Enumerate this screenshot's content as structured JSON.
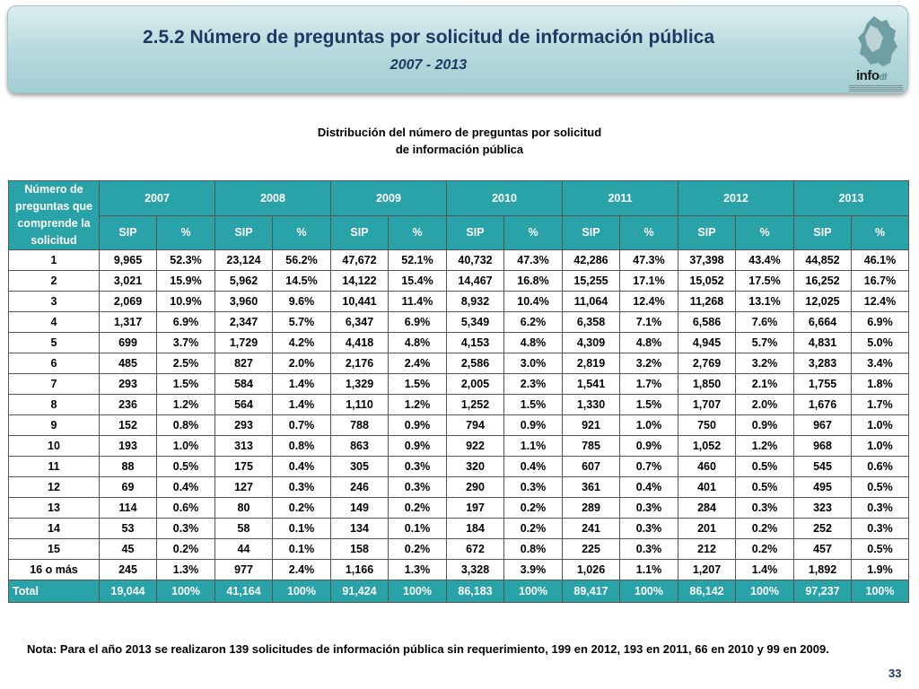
{
  "header": {
    "title": "2.5.2 Número de preguntas por solicitud de información pública",
    "subtitle": "2007 - 2013",
    "logo_text_main": "info",
    "logo_text_small": "df"
  },
  "distribution_title": {
    "line1": "Distribución del número de preguntas por solicitud",
    "line2": "de información pública"
  },
  "table": {
    "row_header": "Número de preguntas que comprende la solicitud",
    "years": [
      "2007",
      "2008",
      "2009",
      "2010",
      "2011",
      "2012",
      "2013"
    ],
    "sub_headers": [
      "SIP",
      "%"
    ],
    "rows": [
      {
        "label": "1",
        "cells": [
          "9,965",
          "52.3%",
          "23,124",
          "56.2%",
          "47,672",
          "52.1%",
          "40,732",
          "47.3%",
          "42,286",
          "47.3%",
          "37,398",
          "43.4%",
          "44,852",
          "46.1%"
        ]
      },
      {
        "label": "2",
        "cells": [
          "3,021",
          "15.9%",
          "5,962",
          "14.5%",
          "14,122",
          "15.4%",
          "14,467",
          "16.8%",
          "15,255",
          "17.1%",
          "15,052",
          "17.5%",
          "16,252",
          "16.7%"
        ]
      },
      {
        "label": "3",
        "cells": [
          "2,069",
          "10.9%",
          "3,960",
          "9.6%",
          "10,441",
          "11.4%",
          "8,932",
          "10.4%",
          "11,064",
          "12.4%",
          "11,268",
          "13.1%",
          "12,025",
          "12.4%"
        ]
      },
      {
        "label": "4",
        "cells": [
          "1,317",
          "6.9%",
          "2,347",
          "5.7%",
          "6,347",
          "6.9%",
          "5,349",
          "6.2%",
          "6,358",
          "7.1%",
          "6,586",
          "7.6%",
          "6,664",
          "6.9%"
        ]
      },
      {
        "label": "5",
        "cells": [
          "699",
          "3.7%",
          "1,729",
          "4.2%",
          "4,418",
          "4.8%",
          "4,153",
          "4.8%",
          "4,309",
          "4.8%",
          "4,945",
          "5.7%",
          "4,831",
          "5.0%"
        ]
      },
      {
        "label": "6",
        "cells": [
          "485",
          "2.5%",
          "827",
          "2.0%",
          "2,176",
          "2.4%",
          "2,586",
          "3.0%",
          "2,819",
          "3.2%",
          "2,769",
          "3.2%",
          "3,283",
          "3.4%"
        ]
      },
      {
        "label": "7",
        "cells": [
          "293",
          "1.5%",
          "584",
          "1.4%",
          "1,329",
          "1.5%",
          "2,005",
          "2.3%",
          "1,541",
          "1.7%",
          "1,850",
          "2.1%",
          "1,755",
          "1.8%"
        ]
      },
      {
        "label": "8",
        "cells": [
          "236",
          "1.2%",
          "564",
          "1.4%",
          "1,110",
          "1.2%",
          "1,252",
          "1.5%",
          "1,330",
          "1.5%",
          "1,707",
          "2.0%",
          "1,676",
          "1.7%"
        ]
      },
      {
        "label": "9",
        "cells": [
          "152",
          "0.8%",
          "293",
          "0.7%",
          "788",
          "0.9%",
          "794",
          "0.9%",
          "921",
          "1.0%",
          "750",
          "0.9%",
          "967",
          "1.0%"
        ]
      },
      {
        "label": "10",
        "cells": [
          "193",
          "1.0%",
          "313",
          "0.8%",
          "863",
          "0.9%",
          "922",
          "1.1%",
          "785",
          "0.9%",
          "1,052",
          "1.2%",
          "968",
          "1.0%"
        ]
      },
      {
        "label": "11",
        "cells": [
          "88",
          "0.5%",
          "175",
          "0.4%",
          "305",
          "0.3%",
          "320",
          "0.4%",
          "607",
          "0.7%",
          "460",
          "0.5%",
          "545",
          "0.6%"
        ]
      },
      {
        "label": "12",
        "cells": [
          "69",
          "0.4%",
          "127",
          "0.3%",
          "246",
          "0.3%",
          "290",
          "0.3%",
          "361",
          "0.4%",
          "401",
          "0.5%",
          "495",
          "0.5%"
        ]
      },
      {
        "label": "13",
        "cells": [
          "114",
          "0.6%",
          "80",
          "0.2%",
          "149",
          "0.2%",
          "197",
          "0.2%",
          "289",
          "0.3%",
          "284",
          "0.3%",
          "323",
          "0.3%"
        ]
      },
      {
        "label": "14",
        "cells": [
          "53",
          "0.3%",
          "58",
          "0.1%",
          "134",
          "0.1%",
          "184",
          "0.2%",
          "241",
          "0.3%",
          "201",
          "0.2%",
          "252",
          "0.3%"
        ]
      },
      {
        "label": "15",
        "cells": [
          "45",
          "0.2%",
          "44",
          "0.1%",
          "158",
          "0.2%",
          "672",
          "0.8%",
          "225",
          "0.3%",
          "212",
          "0.2%",
          "457",
          "0.5%"
        ]
      },
      {
        "label": "16 o más",
        "cells": [
          "245",
          "1.3%",
          "977",
          "2.4%",
          "1,166",
          "1.3%",
          "3,328",
          "3.9%",
          "1,026",
          "1.1%",
          "1,207",
          "1.4%",
          "1,892",
          "1.9%"
        ]
      }
    ],
    "total": {
      "label": "Total",
      "cells": [
        "19,044",
        "100%",
        "41,164",
        "100%",
        "91,424",
        "100%",
        "86,183",
        "100%",
        "89,417",
        "100%",
        "86,142",
        "100%",
        "97,237",
        "100%"
      ]
    }
  },
  "note": "Nota: Para el año 2013 se realizaron 139 solicitudes de información pública sin requerimiento, 199 en 2012, 193 en 2011, 66 en 2010 y 99 en 2009.",
  "page_number": "33",
  "colors": {
    "header_teal": "#2aa3a8",
    "title_blue": "#1f3864",
    "banner_light": "#b5d8dc"
  }
}
